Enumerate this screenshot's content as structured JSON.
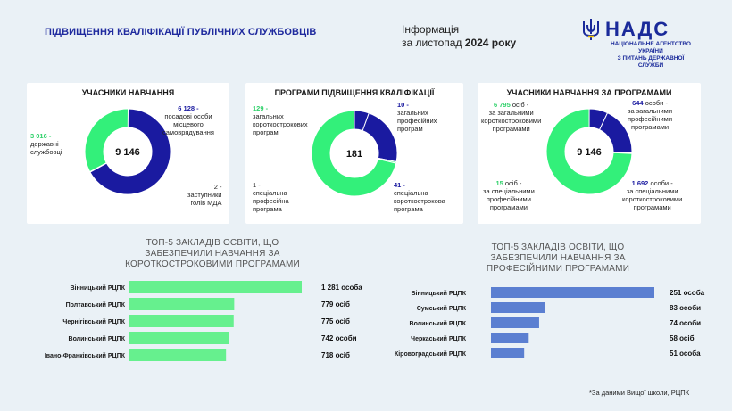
{
  "header": {
    "title": "ПІДВИЩЕННЯ КВАЛІФІКАЦІЇ ПУБЛІЧНИХ СЛУЖБОВЦІВ",
    "info_line1": "Інформація",
    "info_line2_prefix": "за листопад ",
    "info_line2_bold": "2024 року"
  },
  "logo": {
    "name": "НАДС",
    "sub1": "НАЦІОНАЛЬНЕ АГЕНТСТВО УКРАЇНИ",
    "sub2": "З ПИТАНЬ ДЕРЖАВНОЇ СЛУЖБИ",
    "icon": "trident-icon"
  },
  "colors": {
    "blue": "#1a1aa0",
    "green": "#33f07a",
    "bar_green": "#66f08e",
    "bar_blue": "#5b7fd1"
  },
  "chart_data": [
    {
      "type": "pie",
      "title": "УЧАСНИКИ НАВЧАННЯ",
      "center": "9 146",
      "slices": [
        {
          "value": 6128,
          "label_num": "6 128 -",
          "label_text": [
            "посадові особи",
            "місцевого",
            "самоврядування"
          ]
        },
        {
          "value": 2,
          "label_num": "2 -",
          "label_text": [
            "заступники",
            "голів МДА"
          ]
        },
        {
          "value": 3016,
          "label_num": "3 016 -",
          "label_text": [
            "державні",
            "службовці"
          ]
        }
      ]
    },
    {
      "type": "pie",
      "title": "ПРОГРАМИ ПІДВИЩЕННЯ КВАЛІФІКАЦІЇ",
      "center": "181",
      "slices": [
        {
          "value": 10,
          "label_num": "10 -",
          "label_text": [
            "загальних",
            "професійних",
            "програм"
          ]
        },
        {
          "value": 41,
          "label_num": "41 -",
          "label_text": [
            "спеціальна",
            "короткострокова",
            "програма"
          ]
        },
        {
          "value": 1,
          "label_num": "1 -",
          "label_text": [
            "спеціальна",
            "професійна",
            "програма"
          ]
        },
        {
          "value": 129,
          "label_num": "129 -",
          "label_text": [
            "загальних",
            "короткострокових",
            "програм"
          ]
        }
      ]
    },
    {
      "type": "pie",
      "title": "УЧАСНИКИ НАВЧАННЯ ЗА ПРОГРАМАМИ",
      "center": "9 146",
      "slices": [
        {
          "value": 644,
          "label_num": "644",
          "label_suffix": " особи -",
          "label_text": [
            "за загальними",
            "професійними",
            "програмами"
          ]
        },
        {
          "value": 1692,
          "label_num": "1 692",
          "label_suffix": " особи -",
          "label_text": [
            "за спеціальними",
            "короткостроковими",
            "програмами"
          ]
        },
        {
          "value": 15,
          "label_num": "15",
          "label_suffix": " осіб -",
          "label_text": [
            "за спеціальними",
            "професійними",
            "програмами"
          ]
        },
        {
          "value": 6795,
          "label_num": "6 795",
          "label_suffix": " осіб -",
          "label_text": [
            "за загальними",
            "короткостроковими",
            "програмами"
          ]
        }
      ]
    },
    {
      "type": "bar",
      "title": [
        "ТОП-5 ЗАКЛАДІВ ОСВІТИ, ЩО",
        "ЗАБЕЗПЕЧИЛИ НАВЧАННЯ ЗА",
        "КОРОТКОСТРОКОВИМИ ПРОГРАМАМИ"
      ],
      "categories": [
        "Вінницький РЦПК",
        "Полтавський РЦПК",
        "Чернігівський РЦПК",
        "Волинський РЦПК",
        "Івано-Франківський РЦПК"
      ],
      "values": [
        1281,
        779,
        775,
        742,
        718
      ],
      "value_labels": [
        "1 281 особа",
        "779 осіб",
        "775 осіб",
        "742 особи",
        "718 осіб"
      ]
    },
    {
      "type": "bar",
      "title": [
        "ТОП-5 ЗАКЛАДІВ ОСВІТИ, ЩО",
        "ЗАБЕЗПЕЧИЛИ НАВЧАННЯ ЗА",
        "ПРОФЕСІЙНИМИ ПРОГРАМАМИ"
      ],
      "categories": [
        "Вінницький РЦПК",
        "Сумський РЦПК",
        "Волинський РЦПК",
        "Черкаський РЦПК",
        "Кіровоградський РЦПК"
      ],
      "values": [
        251,
        83,
        74,
        58,
        51
      ],
      "value_labels": [
        "251 особа",
        "83 особи",
        "74 особи",
        "58 осіб",
        "51 особа"
      ]
    }
  ],
  "footnote": "*За даними Вищої школи, РЦПК"
}
